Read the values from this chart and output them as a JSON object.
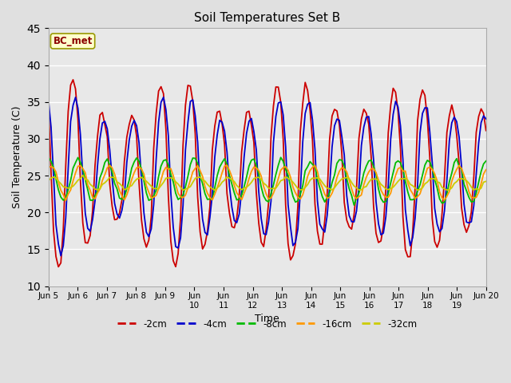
{
  "title": "Soil Temperatures Set B",
  "xlabel": "Time",
  "ylabel": "Soil Temperature (C)",
  "ylim": [
    10,
    45
  ],
  "xlim_days": [
    5,
    20
  ],
  "annotation_text": "BC_met",
  "fig_facecolor": "#e0e0e0",
  "plot_facecolor": "#e8e8e8",
  "series_colors": {
    "-2cm": "#cc0000",
    "-4cm": "#0000cc",
    "-8cm": "#00bb00",
    "-16cm": "#ff9900",
    "-32cm": "#cccc00"
  },
  "xtick_labels": [
    "Jun 5",
    "Jun 6",
    "Jun 7",
    "Jun 8",
    "Jun 9",
    "Jun\n10",
    "Jun\n11",
    "Jun\n12",
    "Jun\n13",
    "Jun\n14",
    "Jun\n15",
    "Jun\n16",
    "Jun\n17",
    "Jun\n18",
    "Jun\n19",
    "Jun 20"
  ],
  "xtick_positions": [
    5,
    6,
    7,
    8,
    9,
    10,
    11,
    12,
    13,
    14,
    15,
    16,
    17,
    18,
    19,
    20
  ],
  "ytick_positions": [
    10,
    15,
    20,
    25,
    30,
    35,
    40,
    45
  ],
  "grid_color": "#ffffff",
  "grid_linewidth": 1.0
}
